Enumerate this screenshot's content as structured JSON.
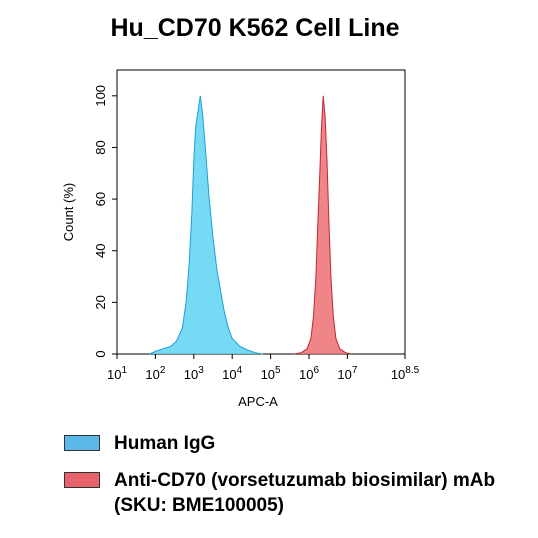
{
  "chart_data": {
    "type": "area",
    "title": "Hu_CD70 K562 Cell Line",
    "xlabel": "APC-A",
    "ylabel": "Count (%)",
    "xscale": "log",
    "xlim": [
      1,
      8.5
    ],
    "ylim": [
      0,
      110
    ],
    "x_ticks": [
      {
        "base": "10",
        "exp": "1",
        "value": 1
      },
      {
        "base": "10",
        "exp": "2",
        "value": 2
      },
      {
        "base": "10",
        "exp": "3",
        "value": 3
      },
      {
        "base": "10",
        "exp": "4",
        "value": 4
      },
      {
        "base": "10",
        "exp": "5",
        "value": 5
      },
      {
        "base": "10",
        "exp": "6",
        "value": 6
      },
      {
        "base": "10",
        "exp": "7",
        "value": 7
      },
      {
        "base": "10",
        "exp": "8.5",
        "value": 8.5
      }
    ],
    "y_ticks": [
      "0",
      "20",
      "40",
      "60",
      "80",
      "100"
    ],
    "y_tick_values": [
      0,
      20,
      40,
      60,
      80,
      100
    ],
    "grid": false,
    "legend_position": "bottom",
    "series": [
      {
        "name": "Human IgG",
        "fill": "#5ed3f3",
        "stroke": "#1aa0d8",
        "points": [
          [
            1.85,
            0
          ],
          [
            2.0,
            1
          ],
          [
            2.2,
            2
          ],
          [
            2.4,
            3
          ],
          [
            2.55,
            5
          ],
          [
            2.7,
            10
          ],
          [
            2.8,
            20
          ],
          [
            2.88,
            35
          ],
          [
            2.95,
            55
          ],
          [
            3.0,
            75
          ],
          [
            3.05,
            88
          ],
          [
            3.12,
            95
          ],
          [
            3.17,
            100
          ],
          [
            3.23,
            93
          ],
          [
            3.3,
            80
          ],
          [
            3.4,
            60
          ],
          [
            3.5,
            45
          ],
          [
            3.6,
            33
          ],
          [
            3.7,
            24
          ],
          [
            3.8,
            16
          ],
          [
            3.9,
            10
          ],
          [
            4.0,
            6
          ],
          [
            4.2,
            3
          ],
          [
            4.4,
            1.5
          ],
          [
            4.6,
            0.5
          ],
          [
            4.8,
            0
          ]
        ]
      },
      {
        "name": "Anti-CD70 (vorsetuzumab biosimilar) mAb (SKU: BME100005)",
        "fill": "#ec6f74",
        "stroke": "#c0282f",
        "points": [
          [
            5.6,
            0
          ],
          [
            5.8,
            0.5
          ],
          [
            5.95,
            2
          ],
          [
            6.05,
            6
          ],
          [
            6.12,
            15
          ],
          [
            6.18,
            30
          ],
          [
            6.23,
            50
          ],
          [
            6.28,
            70
          ],
          [
            6.32,
            86
          ],
          [
            6.37,
            100
          ],
          [
            6.42,
            92
          ],
          [
            6.47,
            75
          ],
          [
            6.52,
            50
          ],
          [
            6.57,
            30
          ],
          [
            6.63,
            15
          ],
          [
            6.7,
            6
          ],
          [
            6.8,
            2
          ],
          [
            6.95,
            0.5
          ],
          [
            7.1,
            0
          ]
        ]
      }
    ]
  }
}
